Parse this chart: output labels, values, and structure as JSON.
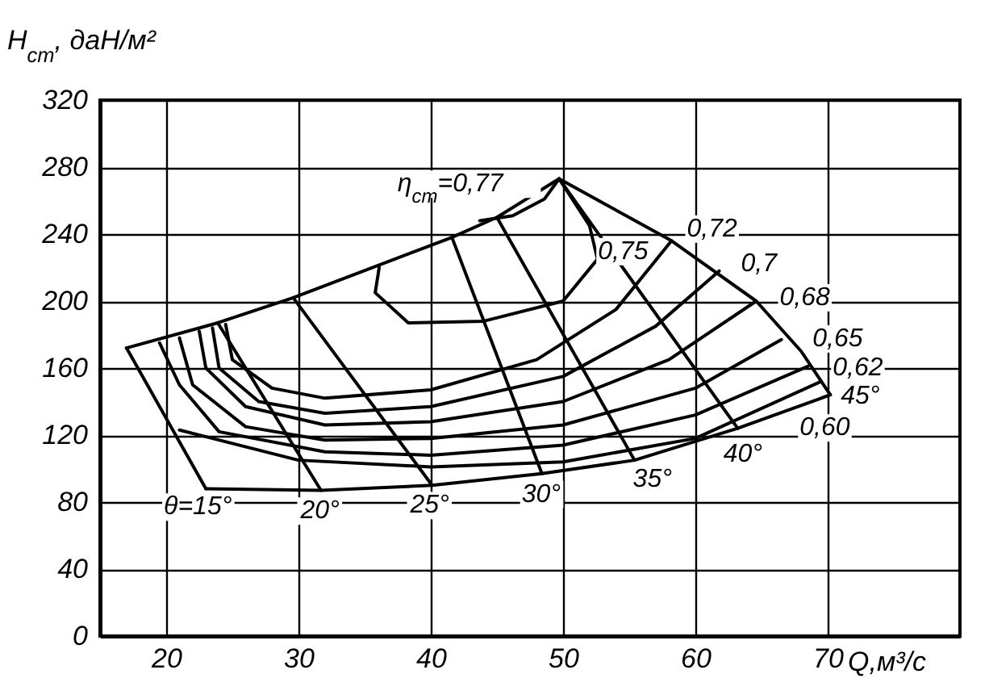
{
  "chart_data": {
    "type": "line",
    "xlabel": "Q,м³/с",
    "ylabel": "H$_{cm}$, даН/м²",
    "xlim": [
      15,
      80
    ],
    "ylim": [
      0,
      320
    ],
    "xticks": [
      20,
      30,
      40,
      50,
      60,
      70
    ],
    "yticks": [
      0,
      40,
      80,
      120,
      160,
      200,
      240,
      280,
      320
    ],
    "grid": true,
    "line_style": "solid",
    "series": [
      {
        "color": "#000000",
        "x": [
          17,
          23.9,
          29.6,
          41.6,
          45,
          49.7
        ],
        "values": [
          172,
          187,
          202,
          238,
          250,
          273
        ]
      },
      {
        "color": "#000000",
        "x": [
          49.7,
          58.2,
          64.6,
          68,
          70.2
        ],
        "values": [
          273,
          236,
          200,
          170,
          144
        ]
      },
      {
        "color": "#000000",
        "x": [
          23,
          31.7,
          40.1,
          48.4,
          55.4,
          63.2,
          70.2
        ],
        "values": [
          88,
          87,
          90,
          97,
          105,
          124,
          144
        ]
      },
      {
        "color": "#000000",
        "x": [
          17,
          23
        ],
        "values": [
          172,
          88
        ]
      },
      {
        "color": "#000000",
        "x": [
          23.9,
          31.7
        ],
        "values": [
          187,
          87
        ]
      },
      {
        "color": "#000000",
        "x": [
          29.6,
          40.1
        ],
        "values": [
          202,
          90
        ]
      },
      {
        "color": "#000000",
        "x": [
          41.6,
          48.4
        ],
        "values": [
          238,
          97
        ]
      },
      {
        "color": "#000000",
        "x": [
          45,
          55.4
        ],
        "values": [
          250,
          105
        ]
      },
      {
        "color": "#000000",
        "x": [
          49.7,
          63.2
        ],
        "values": [
          273,
          124
        ]
      },
      {
        "color": "#000000",
        "x": [
          43.7,
          46.2,
          48.6,
          49.7
        ],
        "values": [
          248,
          251,
          261,
          273
        ]
      },
      {
        "color": "#000000",
        "x": [
          36.1,
          35.8,
          38.3,
          44,
          50,
          52.6,
          52,
          49.7
        ],
        "values": [
          220,
          205,
          187,
          188,
          200,
          225,
          245,
          273
        ]
      },
      {
        "color": "#000000",
        "x": [
          24.5,
          25,
          28,
          32,
          40,
          48,
          54,
          58.2
        ],
        "values": [
          186,
          165,
          148,
          142,
          147,
          165,
          195,
          236
        ]
      },
      {
        "color": "#000000",
        "x": [
          23.5,
          24,
          27,
          32,
          40,
          50,
          57,
          61.8
        ],
        "values": [
          184,
          160,
          140,
          133,
          137,
          155,
          185,
          218
        ]
      },
      {
        "color": "#000000",
        "x": [
          22.5,
          23,
          26,
          32,
          40,
          50,
          58,
          64.6
        ],
        "values": [
          182,
          160,
          137,
          126,
          128,
          140,
          165,
          200
        ]
      },
      {
        "color": "#000000",
        "x": [
          21,
          22,
          26,
          32,
          40,
          50,
          60,
          66.5
        ],
        "values": [
          178,
          150,
          125,
          117,
          118,
          126,
          148,
          177
        ]
      },
      {
        "color": "#000000",
        "x": [
          19.5,
          21,
          24,
          32,
          40,
          50,
          60,
          68.5
        ],
        "values": [
          175,
          150,
          122,
          110,
          108,
          114,
          132,
          161
        ]
      },
      {
        "color": "#000000",
        "x": [
          21,
          30,
          40,
          50,
          60,
          69.5
        ],
        "values": [
          123,
          105,
          101,
          104,
          118,
          152
        ]
      }
    ],
    "annotations": [
      {
        "text": "θ=15°",
        "x": 23,
        "y": 88
      },
      {
        "text": "20°",
        "x": 31.7,
        "y": 87
      },
      {
        "text": "25°",
        "x": 40.1,
        "y": 90
      },
      {
        "text": "30°",
        "x": 48.4,
        "y": 97
      },
      {
        "text": "35°",
        "x": 55.4,
        "y": 105
      },
      {
        "text": "40°",
        "x": 63.2,
        "y": 124
      },
      {
        "text": "45°",
        "x": 70.2,
        "y": 144
      },
      {
        "text": "η$_{cm}$=0,77",
        "x": 43.7,
        "y": 248
      },
      {
        "text": "0,75",
        "x": 52.6,
        "y": 225
      },
      {
        "text": "0,72",
        "x": 58.2,
        "y": 236
      },
      {
        "text": "0,7",
        "x": 61.8,
        "y": 218
      },
      {
        "text": "0,68",
        "x": 64.6,
        "y": 200
      },
      {
        "text": "0,65",
        "x": 66.5,
        "y": 177
      },
      {
        "text": "0,62",
        "x": 68.5,
        "y": 161
      },
      {
        "text": "0,60",
        "x": 69.5,
        "y": 152
      }
    ]
  }
}
